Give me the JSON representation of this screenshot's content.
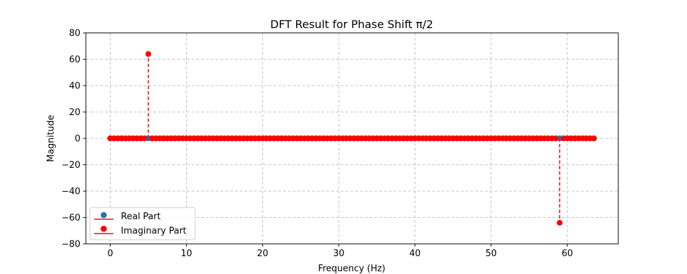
{
  "chart_data": {
    "type": "stem",
    "title": "DFT Result for Phase Shift π/2",
    "xlabel": "Frequency (Hz)",
    "ylabel": "Magnitude",
    "xlim": [
      -3.2,
      66.7
    ],
    "ylim": [
      -80,
      80
    ],
    "x_ticks": [
      0,
      10,
      20,
      30,
      40,
      50,
      60
    ],
    "y_ticks": [
      -80,
      -60,
      -40,
      -20,
      0,
      20,
      40,
      60,
      80
    ],
    "x_tick_labels": [
      "0",
      "10",
      "20",
      "30",
      "40",
      "50",
      "60"
    ],
    "y_tick_labels": [
      "−80",
      "−60",
      "−40",
      "−20",
      "0",
      "20",
      "40",
      "60",
      "80"
    ],
    "grid": true,
    "legend_position": "lower-left",
    "series": [
      {
        "name": "Real Part",
        "color": "#1f77b4",
        "x_start": 0,
        "x_step": 0.5,
        "count": 128,
        "default_value": 0,
        "nonzero": []
      },
      {
        "name": "Imaginary Part",
        "color": "#ff0000",
        "x_start": 0,
        "x_step": 0.5,
        "count": 128,
        "default_value": 0,
        "nonzero": [
          {
            "x": 5,
            "y": 64
          },
          {
            "x": 59,
            "y": -64
          }
        ]
      }
    ]
  }
}
